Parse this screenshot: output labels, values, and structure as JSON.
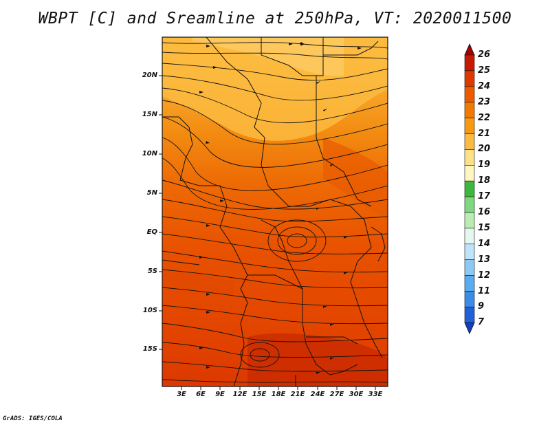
{
  "title": "WBPT [C] and Sreamline at 250hPa, VT: 2020011500",
  "credit": "GrADS: IGES/COLA",
  "map": {
    "lat_labels": [
      "20N",
      "15N",
      "10N",
      "5N",
      "EQ",
      "5S",
      "10S",
      "15S"
    ],
    "lon_labels": [
      "3E",
      "6E",
      "9E",
      "12E",
      "15E",
      "18E",
      "21E",
      "24E",
      "27E",
      "30E",
      "33E"
    ]
  },
  "colorbar": {
    "labels": [
      "26",
      "25",
      "24",
      "23",
      "22",
      "21",
      "20",
      "19",
      "18",
      "17",
      "16",
      "15",
      "14",
      "13",
      "12",
      "11",
      "9",
      "7"
    ],
    "colors": [
      "#a50000",
      "#c81a00",
      "#dd3a00",
      "#ee5a00",
      "#f27a00",
      "#f79a10",
      "#fbbb40",
      "#fde088",
      "#fff6c0",
      "#3cb83c",
      "#7fd87f",
      "#b9eeb0",
      "#e4f8f0",
      "#bde4f8",
      "#8ccaf4",
      "#5aacf0",
      "#3a8ce8",
      "#2060d8",
      "#1040c0"
    ]
  }
}
